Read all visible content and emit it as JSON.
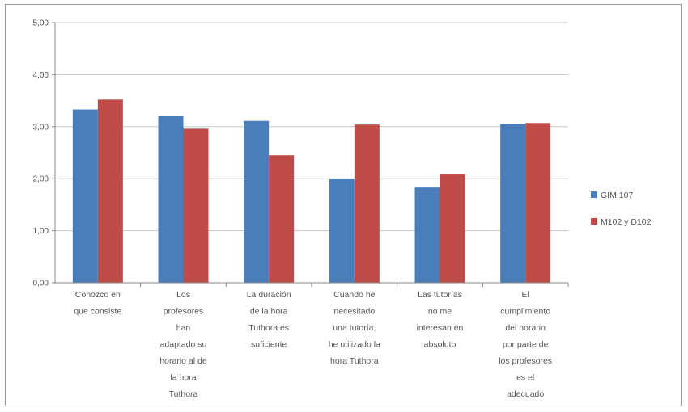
{
  "chart_data": {
    "type": "bar",
    "categories": [
      "Conozco en que consiste",
      "Los profesores han adaptado su horario al de la hora Tuthora",
      "La duración de la hora Tuthora es suficiente",
      "Cuando he necesitado una tutoría, he utilizado la hora Tuthora",
      "Las tutorías no me interesan en absoluto",
      "El cumplimiento del horario por parte de los profesores es el adecuado"
    ],
    "category_lines": [
      [
        "Conozco en",
        "que consiste"
      ],
      [
        "Los",
        "profesores",
        "han",
        "adaptado su",
        "horario al de",
        "la hora",
        "Tuthora"
      ],
      [
        "La duración",
        "de la hora",
        "Tuthora es",
        "suficiente"
      ],
      [
        "Cuando he",
        "necesitado",
        "una tutoría,",
        "he utilizado la",
        "hora Tuthora"
      ],
      [
        "Las tutorías",
        "no me",
        "interesan en",
        "absoluto"
      ],
      [
        "El",
        "cumplimiento",
        "del horario",
        "por parte de",
        "los profesores",
        "es el",
        "adecuado"
      ]
    ],
    "series": [
      {
        "name": "GIM 107",
        "color": "#4a7ebb",
        "values": [
          3.33,
          3.2,
          3.11,
          2.0,
          1.83,
          3.05
        ]
      },
      {
        "name": "M102 y D102",
        "color": "#be4b48",
        "values": [
          3.52,
          2.96,
          2.45,
          3.04,
          2.08,
          3.07
        ]
      }
    ],
    "ylim": [
      0,
      5
    ],
    "yticks": [
      "0,00",
      "1,00",
      "2,00",
      "3,00",
      "4,00",
      "5,00"
    ],
    "grid": true,
    "legend_position": "right",
    "title": "",
    "xlabel": "",
    "ylabel": ""
  }
}
